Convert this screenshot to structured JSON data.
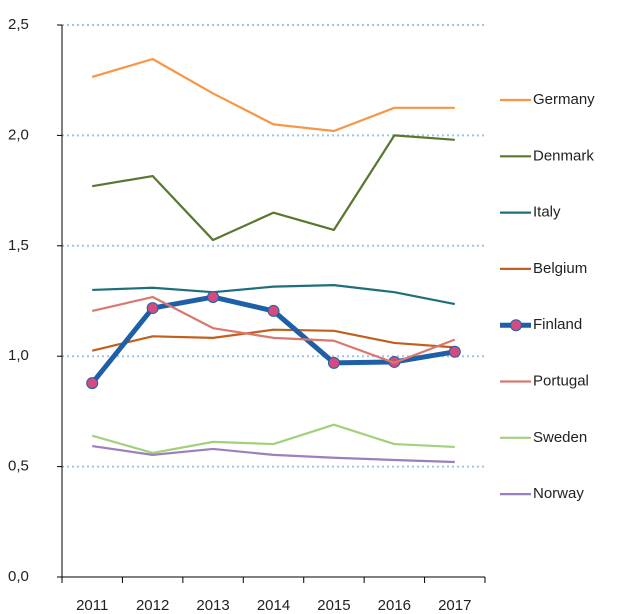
{
  "chart_data": {
    "type": "line",
    "categories": [
      "2011",
      "2012",
      "2013",
      "2014",
      "2015",
      "2016",
      "2017"
    ],
    "series": [
      {
        "name": "Germany",
        "color": "#f79646",
        "values": [
          2.265,
          2.346,
          2.19,
          2.05,
          2.02,
          2.125,
          2.125
        ]
      },
      {
        "name": "Denmark",
        "color": "#58772f",
        "values": [
          1.77,
          1.816,
          1.526,
          1.65,
          1.572,
          2.0,
          1.98
        ]
      },
      {
        "name": "Italy",
        "color": "#1f6f7a",
        "values": [
          1.3,
          1.31,
          1.29,
          1.315,
          1.322,
          1.29,
          1.236
        ]
      },
      {
        "name": "Belgium",
        "color": "#c0601e",
        "values": [
          1.025,
          1.09,
          1.083,
          1.12,
          1.115,
          1.06,
          1.04
        ]
      },
      {
        "name": "Finland",
        "color": "#1f5fa8",
        "marker_color": "#d24c7f",
        "markers": true,
        "values": [
          0.878,
          1.218,
          1.268,
          1.205,
          0.97,
          0.974,
          1.02
        ]
      },
      {
        "name": "Portugal",
        "color": "#d9786e",
        "values": [
          1.205,
          1.268,
          1.127,
          1.083,
          1.07,
          0.97,
          1.075
        ]
      },
      {
        "name": "Sweden",
        "color": "#a4cf7d",
        "values": [
          0.64,
          0.562,
          0.612,
          0.602,
          0.69,
          0.602,
          0.589
        ]
      },
      {
        "name": "Norway",
        "color": "#9b7fbf",
        "values": [
          0.593,
          0.553,
          0.58,
          0.553,
          0.54,
          0.53,
          0.521
        ]
      }
    ],
    "ylim": [
      0,
      2.5
    ],
    "yticks": [
      {
        "value": 0,
        "label": "0,0"
      },
      {
        "value": 0.5,
        "label": "0,5"
      },
      {
        "value": 1,
        "label": "1,0"
      },
      {
        "value": 1.5,
        "label": "1,5"
      },
      {
        "value": 2,
        "label": "2,0"
      },
      {
        "value": 2.5,
        "label": "2,5"
      }
    ],
    "grid": true,
    "legend": "right"
  }
}
